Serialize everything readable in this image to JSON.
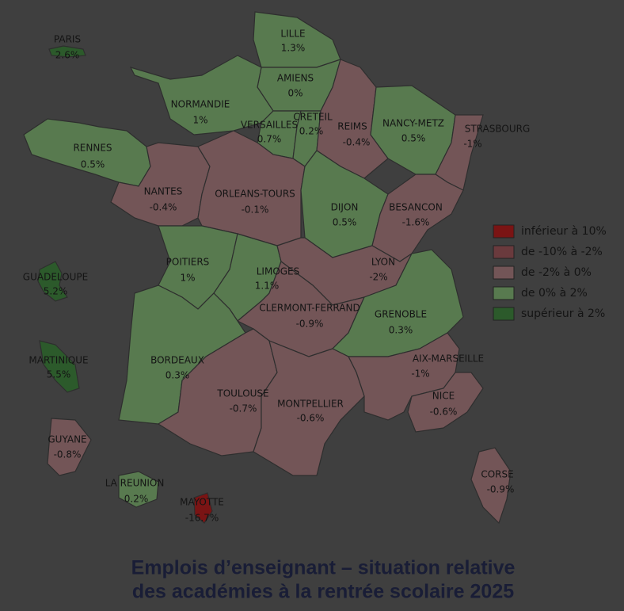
{
  "title_lines": [
    "Emplois d’enseignant – situation relative",
    "des académies à la rentrée scolaire 2025"
  ],
  "legend": [
    {
      "label": "inférieur à 10%",
      "color": "#7a1414"
    },
    {
      "label": "de -10% à -2%",
      "color": "#6a3a3d"
    },
    {
      "label": "de -2% à 0%",
      "color": "#735557"
    },
    {
      "label": "de 0% à 2%",
      "color": "#587a4f"
    },
    {
      "label": "supérieur à 2%",
      "color": "#2c5a2b"
    }
  ],
  "regions": [
    {
      "name": "PARIS",
      "value": "2.6%",
      "color": "#2c5a2b"
    },
    {
      "name": "LILLE",
      "value": "1.3%",
      "color": "#587a4f"
    },
    {
      "name": "AMIENS",
      "value": "0%",
      "color": "#587a4f"
    },
    {
      "name": "NORMANDIE",
      "value": "1%",
      "color": "#587a4f"
    },
    {
      "name": "VERSAILLES",
      "value": "0.7%",
      "color": "#587a4f"
    },
    {
      "name": "CRETEIL",
      "value": "0.2%",
      "color": "#587a4f"
    },
    {
      "name": "REIMS",
      "value": "-0.4%",
      "color": "#735557"
    },
    {
      "name": "NANCY-METZ",
      "value": "0.5%",
      "color": "#587a4f"
    },
    {
      "name": "STRASBOURG",
      "value": "-1%",
      "color": "#735557"
    },
    {
      "name": "RENNES",
      "value": "0.5%",
      "color": "#587a4f"
    },
    {
      "name": "NANTES",
      "value": "-0.4%",
      "color": "#735557"
    },
    {
      "name": "ORLEANS-TOURS",
      "value": "-0.1%",
      "color": "#735557"
    },
    {
      "name": "DIJON",
      "value": "0.5%",
      "color": "#587a4f"
    },
    {
      "name": "BESANCON",
      "value": "-1.6%",
      "color": "#735557"
    },
    {
      "name": "POITIERS",
      "value": "1%",
      "color": "#587a4f"
    },
    {
      "name": "LIMOGES",
      "value": "1.1%",
      "color": "#587a4f"
    },
    {
      "name": "LYON",
      "value": "-2%",
      "color": "#735557"
    },
    {
      "name": "CLERMONT-FERRAND",
      "value": "-0.9%",
      "color": "#735557"
    },
    {
      "name": "GRENOBLE",
      "value": "0.3%",
      "color": "#587a4f"
    },
    {
      "name": "GUADELOUPE",
      "value": "5.2%",
      "color": "#2c5a2b"
    },
    {
      "name": "MARTINIQUE",
      "value": "5.5%",
      "color": "#2c5a2b"
    },
    {
      "name": "BORDEAUX",
      "value": "0.3%",
      "color": "#587a4f"
    },
    {
      "name": "AIX-MARSEILLE",
      "value": "-1%",
      "color": "#735557"
    },
    {
      "name": "TOULOUSE",
      "value": "-0.7%",
      "color": "#735557"
    },
    {
      "name": "MONTPELLIER",
      "value": "-0.6%",
      "color": "#735557"
    },
    {
      "name": "NICE",
      "value": "-0.6%",
      "color": "#735557"
    },
    {
      "name": "GUYANE",
      "value": "-0.8%",
      "color": "#735557"
    },
    {
      "name": "LA REUNION",
      "value": "0.2%",
      "color": "#587a4f"
    },
    {
      "name": "MAYOTTE",
      "value": "-16.7%",
      "color": "#7a1414"
    },
    {
      "name": "CORSE",
      "value": "-0.9%",
      "color": "#735557"
    }
  ]
}
